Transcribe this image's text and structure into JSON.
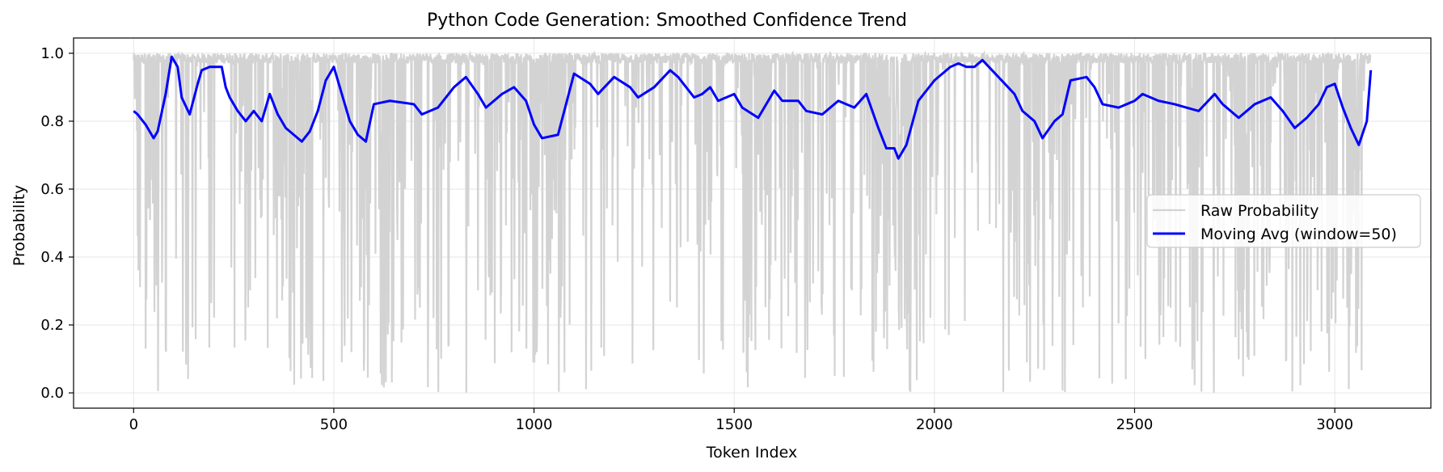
{
  "chart_data": {
    "type": "line",
    "title": "Python Code Generation: Smoothed Confidence Trend",
    "xlabel": "Token Index",
    "ylabel": "Probability",
    "xlim": [
      -150,
      3240
    ],
    "ylim": [
      -0.045,
      1.045
    ],
    "xticks": [
      0,
      500,
      1000,
      1500,
      2000,
      2500,
      3000
    ],
    "yticks": [
      0.0,
      0.2,
      0.4,
      0.6,
      0.8,
      1.0
    ],
    "xtick_labels": [
      "0",
      "500",
      "1000",
      "1500",
      "2000",
      "2500",
      "3000"
    ],
    "ytick_labels": [
      "0.0",
      "0.2",
      "0.4",
      "0.6",
      "0.8",
      "1.0"
    ],
    "grid": true,
    "legend_position": "center-right",
    "series": [
      {
        "name": "Raw Probability",
        "color": "#d3d3d3",
        "note_points": "approximately 3090 tokens; most values near 1.0 with frequent sharp dips toward 0.0",
        "num_points": 3090
      },
      {
        "name": "Moving Avg (window=50)",
        "color": "#0000ff",
        "x": [
          0,
          10,
          30,
          50,
          60,
          80,
          95,
          110,
          120,
          140,
          160,
          170,
          190,
          220,
          230,
          240,
          260,
          280,
          300,
          320,
          340,
          360,
          380,
          400,
          420,
          440,
          460,
          480,
          500,
          520,
          540,
          560,
          580,
          600,
          640,
          700,
          720,
          760,
          800,
          830,
          860,
          880,
          900,
          920,
          950,
          980,
          1000,
          1020,
          1060,
          1080,
          1100,
          1140,
          1160,
          1200,
          1240,
          1260,
          1300,
          1340,
          1360,
          1380,
          1400,
          1420,
          1440,
          1460,
          1500,
          1520,
          1560,
          1600,
          1620,
          1660,
          1680,
          1720,
          1760,
          1800,
          1830,
          1860,
          1880,
          1900,
          1910,
          1930,
          1960,
          2000,
          2040,
          2060,
          2080,
          2100,
          2120,
          2160,
          2200,
          2220,
          2250,
          2270,
          2300,
          2320,
          2340,
          2380,
          2400,
          2420,
          2460,
          2500,
          2520,
          2560,
          2600,
          2630,
          2660,
          2700,
          2720,
          2760,
          2800,
          2840,
          2870,
          2900,
          2930,
          2960,
          2980,
          3000,
          3020,
          3040,
          3060,
          3080,
          3090
        ],
        "y": [
          0.83,
          0.82,
          0.79,
          0.75,
          0.77,
          0.88,
          0.99,
          0.96,
          0.87,
          0.82,
          0.91,
          0.95,
          0.96,
          0.96,
          0.9,
          0.87,
          0.83,
          0.8,
          0.83,
          0.8,
          0.88,
          0.82,
          0.78,
          0.76,
          0.74,
          0.77,
          0.83,
          0.92,
          0.96,
          0.88,
          0.8,
          0.76,
          0.74,
          0.85,
          0.86,
          0.85,
          0.82,
          0.84,
          0.9,
          0.93,
          0.88,
          0.84,
          0.86,
          0.88,
          0.9,
          0.86,
          0.79,
          0.75,
          0.76,
          0.85,
          0.94,
          0.91,
          0.88,
          0.93,
          0.9,
          0.87,
          0.9,
          0.95,
          0.93,
          0.9,
          0.87,
          0.88,
          0.9,
          0.86,
          0.88,
          0.84,
          0.81,
          0.89,
          0.86,
          0.86,
          0.83,
          0.82,
          0.86,
          0.84,
          0.88,
          0.78,
          0.72,
          0.72,
          0.69,
          0.73,
          0.86,
          0.92,
          0.96,
          0.97,
          0.96,
          0.96,
          0.98,
          0.93,
          0.88,
          0.83,
          0.8,
          0.75,
          0.8,
          0.82,
          0.92,
          0.93,
          0.9,
          0.85,
          0.84,
          0.86,
          0.88,
          0.86,
          0.85,
          0.84,
          0.83,
          0.88,
          0.85,
          0.81,
          0.85,
          0.87,
          0.83,
          0.78,
          0.81,
          0.85,
          0.9,
          0.91,
          0.84,
          0.78,
          0.73,
          0.8,
          0.95
        ]
      }
    ]
  }
}
